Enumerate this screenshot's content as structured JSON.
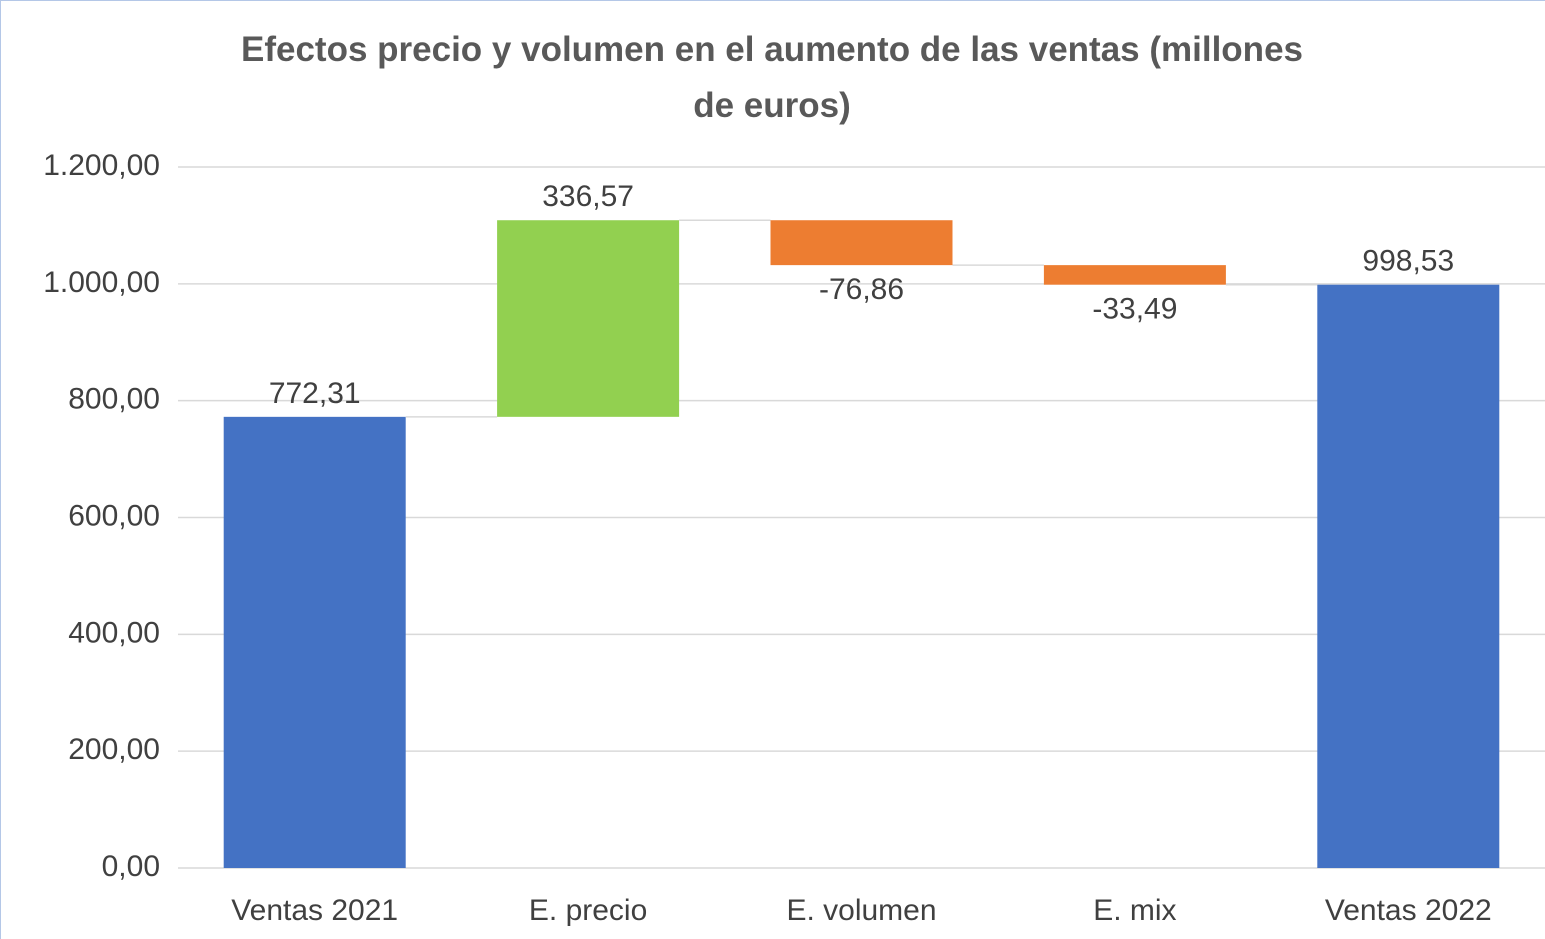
{
  "chart_data": {
    "type": "waterfall",
    "title": "Efectos precio y volumen en el aumento de las ventas (millones de euros)",
    "categories": [
      "Ventas 2021",
      "E. precio",
      "E. volumen",
      "E. mix",
      "Ventas 2022"
    ],
    "values": [
      772.31,
      336.57,
      -76.86,
      -33.49,
      998.53
    ],
    "value_labels": [
      "772,31",
      "336,57",
      "-76,86",
      "-33,49",
      "998,53"
    ],
    "measure": [
      "absolute",
      "relative",
      "relative",
      "relative",
      "total"
    ],
    "colors": [
      "#4472c4",
      "#92d050",
      "#ed7d31",
      "#ed7d31",
      "#4472c4"
    ],
    "ylim": [
      0,
      1200
    ],
    "yticks": [
      {
        "value": 0,
        "label": "0,00"
      },
      {
        "value": 200,
        "label": "200,00"
      },
      {
        "value": 400,
        "label": "400,00"
      },
      {
        "value": 600,
        "label": "600,00"
      },
      {
        "value": 800,
        "label": "800,00"
      },
      {
        "value": 1000,
        "label": "1.000,00"
      },
      {
        "value": 1200,
        "label": "1.200,00"
      }
    ],
    "grid": true
  }
}
